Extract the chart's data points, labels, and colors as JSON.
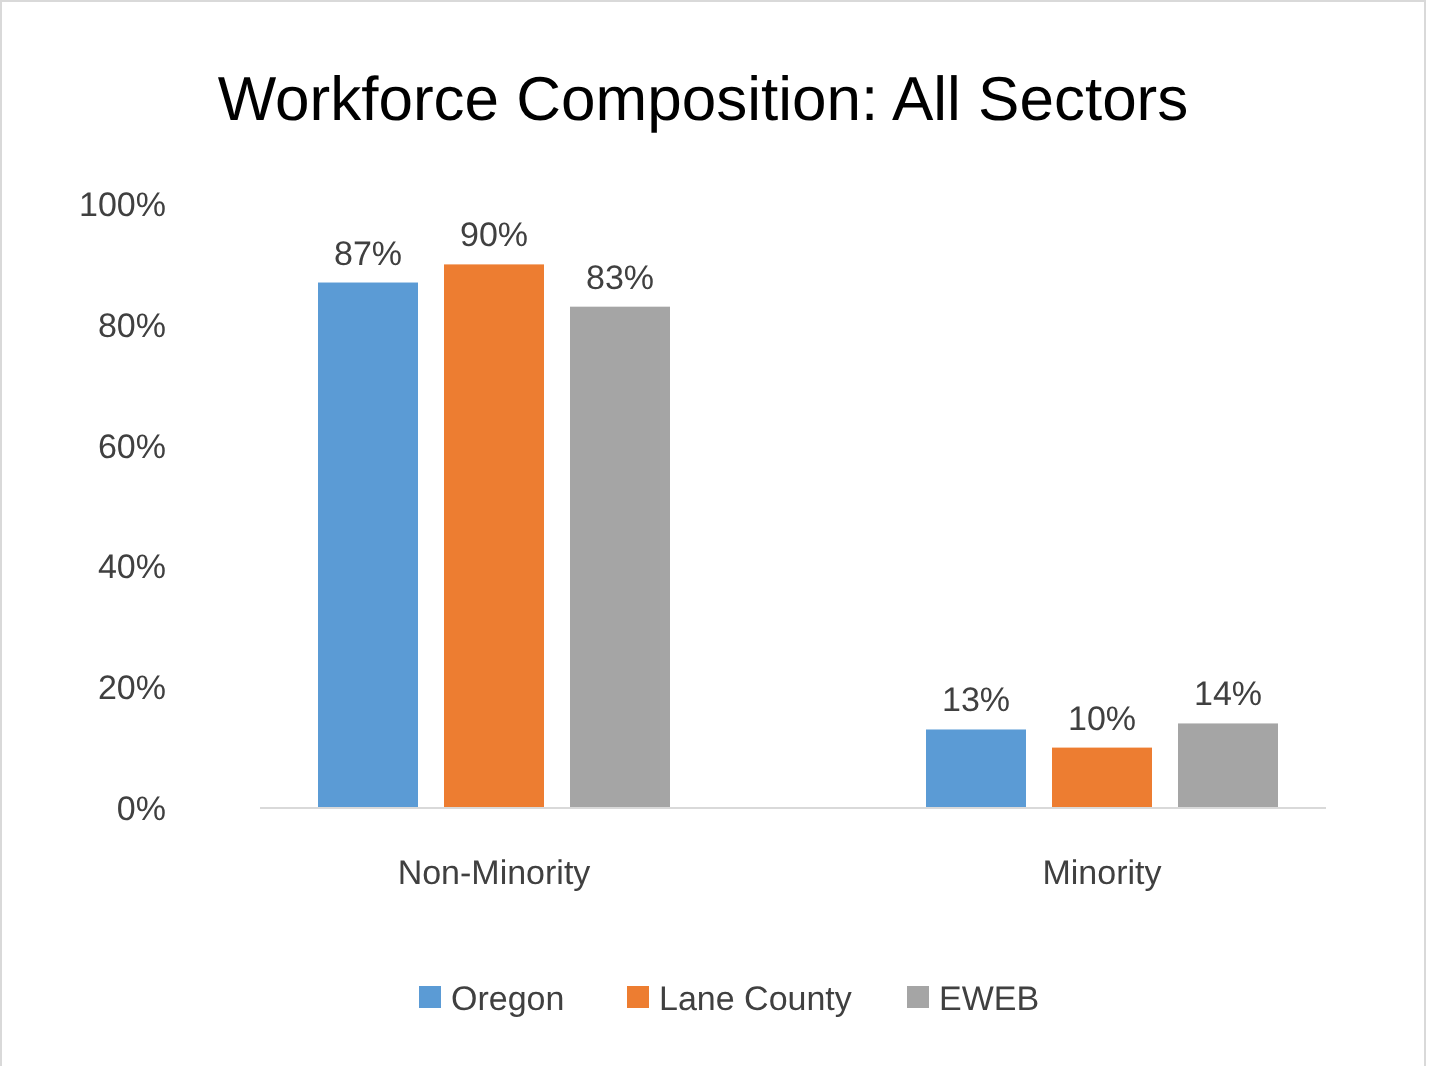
{
  "chart_data": {
    "type": "bar",
    "title": "Workforce Composition: All Sectors",
    "categories": [
      "Non-Minority",
      "Minority"
    ],
    "series": [
      {
        "name": "Oregon",
        "color": "#5b9bd5",
        "values": [
          87,
          13
        ],
        "value_labels": [
          "87%",
          "13%"
        ]
      },
      {
        "name": "Lane County",
        "color": "#ed7d31",
        "values": [
          90,
          10
        ],
        "value_labels": [
          "90%",
          "10%"
        ]
      },
      {
        "name": "EWEB",
        "color": "#a5a5a5",
        "values": [
          83,
          14
        ],
        "value_labels": [
          "83%",
          "14%"
        ]
      }
    ],
    "ylim": [
      0,
      100
    ],
    "yticks": [
      {
        "value": 0,
        "label": "0%"
      },
      {
        "value": 20,
        "label": "20%"
      },
      {
        "value": 40,
        "label": "40%"
      },
      {
        "value": 60,
        "label": "60%"
      },
      {
        "value": 80,
        "label": "80%"
      },
      {
        "value": 100,
        "label": "100%"
      }
    ],
    "grid": false,
    "legend": "bottom"
  }
}
